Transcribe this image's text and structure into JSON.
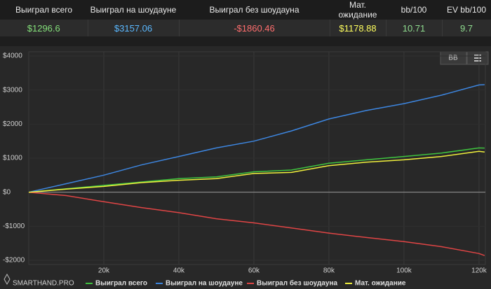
{
  "table": {
    "headers": [
      "Выиграл всего",
      "Выиграл на шоудауне",
      "Выиграл без шоудауна",
      "Мат. ожидание",
      "bb/100",
      "EV bb/100"
    ],
    "values": [
      "$1296.6",
      "$3157.06",
      "-$1860.46",
      "$1178.88",
      "10.71",
      "9.7"
    ],
    "value_colors": [
      "#84e07a",
      "#5ab8ff",
      "#ff6e6e",
      "#ffff5e",
      "#8fdc8f",
      "#8fdc8f"
    ]
  },
  "toolbar": {
    "unit_button": "BB"
  },
  "brand": "SMARTHAND.PRO",
  "chart_data": {
    "type": "line",
    "x": [
      0,
      10000,
      20000,
      30000,
      40000,
      50000,
      60000,
      70000,
      80000,
      90000,
      100000,
      110000,
      120000,
      121500
    ],
    "series": [
      {
        "name": "Выиграл всего",
        "color": "#3fc43f",
        "values": [
          0,
          100,
          200,
          300,
          400,
          450,
          600,
          650,
          850,
          950,
          1050,
          1150,
          1300,
          1296.6
        ]
      },
      {
        "name": "Выиграл на шоудауне",
        "color": "#3d86e0",
        "values": [
          0,
          250,
          500,
          800,
          1050,
          1300,
          1500,
          1800,
          2150,
          2400,
          2600,
          2850,
          3150,
          3157.06
        ]
      },
      {
        "name": "Выиграл без шоудауна",
        "color": "#e04545",
        "values": [
          0,
          -100,
          -280,
          -450,
          -600,
          -780,
          -900,
          -1050,
          -1200,
          -1330,
          -1450,
          -1600,
          -1800,
          -1860.46
        ]
      },
      {
        "name": "Мат. ожидание",
        "color": "#f0f03c",
        "values": [
          0,
          90,
          170,
          280,
          350,
          400,
          550,
          580,
          780,
          880,
          950,
          1050,
          1200,
          1178.88
        ]
      }
    ],
    "xlim": [
      0,
      121700
    ],
    "ylim": [
      -2000,
      4000
    ],
    "xticks": [
      {
        "value": 20000,
        "label": "20k"
      },
      {
        "value": 40000,
        "label": "40k"
      },
      {
        "value": 60000,
        "label": "60k"
      },
      {
        "value": 80000,
        "label": "80k"
      },
      {
        "value": 100000,
        "label": "100k"
      },
      {
        "value": 120000,
        "label": "120k"
      }
    ],
    "yticks": [
      {
        "value": 4000,
        "label": "$4000"
      },
      {
        "value": 3000,
        "label": "$3000"
      },
      {
        "value": 2000,
        "label": "$2000"
      },
      {
        "value": 1000,
        "label": "$1000"
      },
      {
        "value": 0,
        "label": "$0"
      },
      {
        "value": -1000,
        "label": "-$1000"
      },
      {
        "value": -2000,
        "label": "-$2000"
      }
    ],
    "grid": true
  }
}
